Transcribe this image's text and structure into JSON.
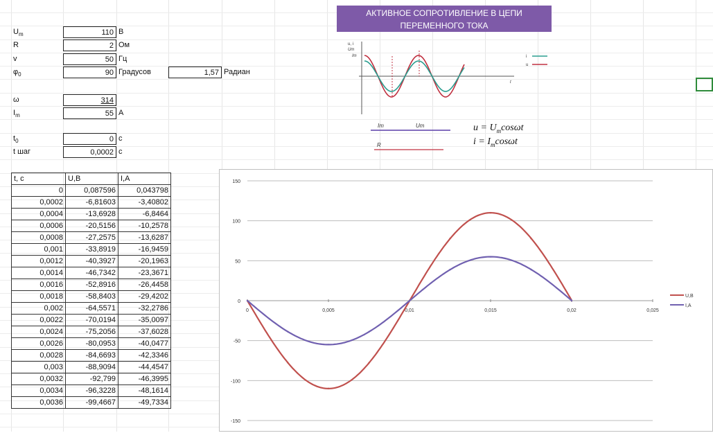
{
  "params": {
    "um": {
      "label": "U",
      "sub": "m",
      "value": "110",
      "unit": "В"
    },
    "r": {
      "label": "R",
      "value": "2",
      "unit": "Ом"
    },
    "v": {
      "label": "v",
      "value": "50",
      "unit": "Гц"
    },
    "phi": {
      "label": "φ",
      "sub": "0",
      "value": "90",
      "unit": "Градусов"
    },
    "rad": {
      "value": "1,57",
      "unit": "Радиан"
    },
    "omega": {
      "label": "ω",
      "value": "314"
    },
    "im": {
      "label": "I",
      "sub": "m",
      "value": "55",
      "unit": "А"
    },
    "t0": {
      "label": "t",
      "sub": "0",
      "value": "0",
      "unit": "с"
    },
    "tstep": {
      "label": "t шаг",
      "value": "0,0002",
      "unit": "с"
    }
  },
  "title": {
    "line1": "АКТИВНОЕ СОПРОТИВЛЕНИЕ В ЦЕПИ",
    "line2": "ПЕРЕМЕННОГО ТОКА"
  },
  "schema": {
    "axis_labels": [
      "u, i",
      "Um",
      "Im",
      "t"
    ],
    "legend": [
      "i",
      "u"
    ],
    "circuit": [
      "Im",
      "Um",
      "R"
    ],
    "formula_u": {
      "lhs": "u = U",
      "sub": "m",
      "rhs": "cosωt"
    },
    "formula_i": {
      "lhs": "i = I",
      "sub": "m",
      "rhs": "cosωt"
    },
    "colors": {
      "u": "#c03040",
      "i": "#2a9d8f"
    }
  },
  "table": {
    "headers": [
      "t, c",
      "U,B",
      "I,A"
    ],
    "rows": [
      [
        "0",
        "0,087596",
        "0,043798"
      ],
      [
        "0,0002",
        "-6,81603",
        "-3,40802"
      ],
      [
        "0,0004",
        "-13,6928",
        "-6,8464"
      ],
      [
        "0,0006",
        "-20,5156",
        "-10,2578"
      ],
      [
        "0,0008",
        "-27,2575",
        "-13,6287"
      ],
      [
        "0,001",
        "-33,8919",
        "-16,9459"
      ],
      [
        "0,0012",
        "-40,3927",
        "-20,1963"
      ],
      [
        "0,0014",
        "-46,7342",
        "-23,3671"
      ],
      [
        "0,0016",
        "-52,8916",
        "-26,4458"
      ],
      [
        "0,0018",
        "-58,8403",
        "-29,4202"
      ],
      [
        "0,002",
        "-64,5571",
        "-32,2786"
      ],
      [
        "0,0022",
        "-70,0194",
        "-35,0097"
      ],
      [
        "0,0024",
        "-75,2056",
        "-37,6028"
      ],
      [
        "0,0026",
        "-80,0953",
        "-40,0477"
      ],
      [
        "0,0028",
        "-84,6693",
        "-42,3346"
      ],
      [
        "0,003",
        "-88,9094",
        "-44,4547"
      ],
      [
        "0,0032",
        "-92,799",
        "-46,3995"
      ],
      [
        "0,0034",
        "-96,3228",
        "-48,1614"
      ],
      [
        "0,0036",
        "-99,4667",
        "-49,7334"
      ]
    ]
  },
  "chart_data": {
    "type": "scatter",
    "title": "",
    "xlabel": "",
    "ylabel": "",
    "xlim": [
      0,
      0.025
    ],
    "ylim": [
      -150,
      150
    ],
    "x_ticks": [
      "0",
      "0,005",
      "0,01",
      "0,015",
      "0,02",
      "0,025"
    ],
    "y_ticks": [
      "150",
      "100",
      "50",
      "0",
      "-50",
      "-100",
      "-150"
    ],
    "grid": true,
    "legend_position": "right",
    "series": [
      {
        "name": "U,B",
        "color": "#c0504d",
        "amplitude": 110,
        "omega": 314,
        "phase": 1.57,
        "x": [
          0,
          0.0025,
          0.005,
          0.0075,
          0.01,
          0.0125,
          0.015,
          0.0175,
          0.02
        ],
        "y": [
          0,
          -77.8,
          -110,
          -77.8,
          0,
          77.8,
          110,
          77.8,
          0
        ]
      },
      {
        "name": "I,A",
        "color": "#7060b0",
        "amplitude": 55,
        "omega": 314,
        "phase": 1.57,
        "x": [
          0,
          0.0025,
          0.005,
          0.0075,
          0.01,
          0.0125,
          0.015,
          0.0175,
          0.02
        ],
        "y": [
          0,
          -38.9,
          -55,
          -38.9,
          0,
          38.9,
          55,
          38.9,
          0
        ]
      }
    ]
  }
}
